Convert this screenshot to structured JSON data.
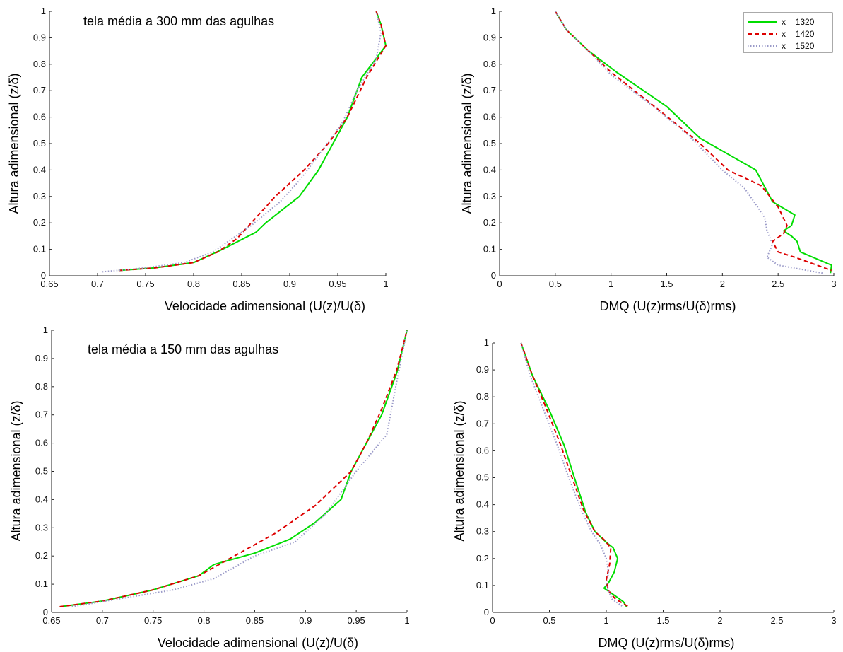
{
  "legend": {
    "entries": [
      {
        "label": "x = 1320",
        "color": "#00dd00",
        "dash": "solid"
      },
      {
        "label": "x = 1420",
        "color": "#dd0000",
        "dash": "dashed"
      },
      {
        "label": "x = 1520",
        "color": "#9a9ac8",
        "dash": "dotted"
      }
    ]
  },
  "chart_data": [
    {
      "type": "line",
      "id": "top-left",
      "annotation": "tela média a 300 mm das agulhas",
      "xlabel": "Velocidade adimensional (U(z)/U(δ)",
      "ylabel": "Altura adimensional (z/δ)",
      "xlim": [
        0.65,
        1
      ],
      "ylim": [
        0,
        1
      ],
      "xticks": [
        "0.65",
        "0.7",
        "0.75",
        "0.8",
        "0.85",
        "0.9",
        "0.95",
        "1"
      ],
      "yticks": [
        "0",
        "0.1",
        "0.2",
        "0.3",
        "0.4",
        "0.5",
        "0.6",
        "0.7",
        "0.8",
        "0.9",
        "1"
      ],
      "series": [
        {
          "name": "x = 1320",
          "color": "#00dd00",
          "dash": "solid",
          "x": [
            0.722,
            0.76,
            0.8,
            0.83,
            0.865,
            0.875,
            0.91,
            0.93,
            0.945,
            0.96,
            0.975,
            1.0,
            0.995,
            0.99
          ],
          "y": [
            0.02,
            0.03,
            0.05,
            0.1,
            0.165,
            0.2,
            0.3,
            0.4,
            0.5,
            0.6,
            0.75,
            0.87,
            0.95,
            1.0
          ]
        },
        {
          "name": "x = 1420",
          "color": "#dd0000",
          "dash": "dashed",
          "x": [
            0.722,
            0.76,
            0.8,
            0.825,
            0.845,
            0.86,
            0.885,
            0.915,
            0.94,
            0.96,
            0.98,
            1.0,
            0.995,
            0.99
          ],
          "y": [
            0.02,
            0.03,
            0.05,
            0.09,
            0.14,
            0.2,
            0.3,
            0.4,
            0.5,
            0.6,
            0.75,
            0.87,
            0.95,
            1.0
          ]
        },
        {
          "name": "x = 1520",
          "color": "#9a9ac8",
          "dash": "dotted",
          "x": [
            0.705,
            0.75,
            0.79,
            0.82,
            0.84,
            0.86,
            0.89,
            0.91,
            0.935,
            0.955,
            0.97,
            0.99,
            0.995,
            0.99
          ],
          "y": [
            0.015,
            0.03,
            0.05,
            0.09,
            0.14,
            0.19,
            0.28,
            0.36,
            0.48,
            0.58,
            0.7,
            0.82,
            0.92,
            1.0
          ]
        }
      ]
    },
    {
      "type": "line",
      "id": "top-right",
      "xlabel": "DMQ (U(z)rms/U(δ)rms)",
      "ylabel": "Altura adimensional (z/δ)",
      "xlim": [
        0,
        3
      ],
      "ylim": [
        0,
        1
      ],
      "xticks": [
        "0",
        "0.5",
        "1",
        "1.5",
        "2",
        "2.5",
        "3"
      ],
      "yticks": [
        "0",
        "0.1",
        "0.2",
        "0.3",
        "0.4",
        "0.5",
        "0.6",
        "0.7",
        "0.8",
        "0.9",
        "1"
      ],
      "legend_position": "top-right",
      "series": [
        {
          "name": "x = 1320",
          "color": "#00dd00",
          "dash": "solid",
          "x": [
            0.5,
            0.6,
            0.8,
            1.05,
            1.5,
            1.8,
            2.3,
            2.45,
            2.65,
            2.62,
            2.55,
            2.62,
            2.67,
            2.7,
            2.98,
            2.97
          ],
          "y": [
            1.0,
            0.93,
            0.85,
            0.77,
            0.64,
            0.52,
            0.4,
            0.28,
            0.23,
            0.19,
            0.17,
            0.15,
            0.13,
            0.09,
            0.04,
            0.01
          ]
        },
        {
          "name": "x = 1420",
          "color": "#dd0000",
          "dash": "dashed",
          "x": [
            0.5,
            0.6,
            0.8,
            1.0,
            1.45,
            1.8,
            2.05,
            2.35,
            2.5,
            2.58,
            2.55,
            2.45,
            2.5,
            2.65,
            2.85,
            2.98
          ],
          "y": [
            1.0,
            0.93,
            0.85,
            0.77,
            0.62,
            0.5,
            0.4,
            0.34,
            0.26,
            0.19,
            0.16,
            0.13,
            0.09,
            0.07,
            0.04,
            0.02
          ]
        },
        {
          "name": "x = 1520",
          "color": "#9a9ac8",
          "dash": "dotted",
          "x": [
            0.5,
            0.6,
            0.8,
            1.0,
            1.35,
            1.7,
            2.0,
            2.2,
            2.3,
            2.38,
            2.4,
            2.45,
            2.4,
            2.5,
            2.9
          ],
          "y": [
            1.0,
            0.93,
            0.85,
            0.76,
            0.65,
            0.53,
            0.4,
            0.33,
            0.27,
            0.22,
            0.17,
            0.12,
            0.07,
            0.04,
            0.01
          ]
        }
      ]
    },
    {
      "type": "line",
      "id": "bottom-left",
      "annotation": "tela média a 150 mm das agulhas",
      "xlabel": "Velocidade adimensional (U(z)/U(δ)",
      "ylabel": "Altura adimensional (z/δ)",
      "xlim": [
        0.65,
        1
      ],
      "ylim": [
        0,
        1
      ],
      "xticks": [
        "0.65",
        "0.7",
        "0.75",
        "0.8",
        "0.85",
        "0.9",
        "0.95",
        "1"
      ],
      "yticks": [
        "0",
        "0.1",
        "0.2",
        "0.3",
        "0.4",
        "0.5",
        "0.6",
        "0.7",
        "0.8",
        "0.9",
        "1"
      ],
      "series": [
        {
          "name": "x = 1320",
          "color": "#00dd00",
          "dash": "solid",
          "x": [
            0.658,
            0.7,
            0.75,
            0.795,
            0.81,
            0.85,
            0.885,
            0.91,
            0.935,
            0.945,
            0.96,
            0.975,
            0.99,
            1.0
          ],
          "y": [
            0.02,
            0.04,
            0.08,
            0.13,
            0.17,
            0.21,
            0.26,
            0.32,
            0.4,
            0.5,
            0.6,
            0.7,
            0.85,
            1.0
          ]
        },
        {
          "name": "x = 1420",
          "color": "#dd0000",
          "dash": "dashed",
          "x": [
            0.658,
            0.7,
            0.75,
            0.795,
            0.83,
            0.87,
            0.91,
            0.945,
            0.96,
            0.975,
            0.99,
            1.0
          ],
          "y": [
            0.02,
            0.04,
            0.08,
            0.13,
            0.2,
            0.28,
            0.38,
            0.5,
            0.6,
            0.72,
            0.86,
            1.0
          ]
        },
        {
          "name": "x = 1520",
          "color": "#9a9ac8",
          "dash": "dotted",
          "x": [
            0.67,
            0.72,
            0.77,
            0.81,
            0.85,
            0.89,
            0.92,
            0.95,
            0.98,
            0.99,
            1.0
          ],
          "y": [
            0.02,
            0.05,
            0.08,
            0.12,
            0.2,
            0.25,
            0.35,
            0.5,
            0.63,
            0.82,
            1.0
          ]
        }
      ]
    },
    {
      "type": "line",
      "id": "bottom-right",
      "xlabel": "DMQ (U(z)rms/U(δ)rms)",
      "ylabel": "Altura adimensional (z/δ)",
      "xlim": [
        0,
        3
      ],
      "ylim": [
        0,
        1
      ],
      "xticks": [
        "0",
        "0.5",
        "1",
        "1.5",
        "2",
        "2.5",
        "3"
      ],
      "yticks": [
        "0",
        "0.1",
        "0.2",
        "0.3",
        "0.4",
        "0.5",
        "0.6",
        "0.7",
        "0.8",
        "0.9",
        "1"
      ],
      "series": [
        {
          "name": "x = 1320",
          "color": "#00dd00",
          "dash": "solid",
          "x": [
            0.25,
            0.35,
            0.5,
            0.63,
            0.72,
            0.82,
            0.9,
            1.0,
            1.06,
            1.1,
            1.07,
            1.02,
            0.98,
            1.05,
            1.15,
            1.18
          ],
          "y": [
            1.0,
            0.88,
            0.75,
            0.62,
            0.5,
            0.37,
            0.3,
            0.26,
            0.24,
            0.2,
            0.15,
            0.11,
            0.09,
            0.07,
            0.04,
            0.02
          ]
        },
        {
          "name": "x = 1420",
          "color": "#dd0000",
          "dash": "dashed",
          "x": [
            0.25,
            0.35,
            0.48,
            0.6,
            0.7,
            0.8,
            0.9,
            0.98,
            1.04,
            1.03,
            1.0,
            1.02,
            1.08,
            1.2
          ],
          "y": [
            1.0,
            0.88,
            0.75,
            0.62,
            0.5,
            0.38,
            0.3,
            0.27,
            0.24,
            0.18,
            0.12,
            0.08,
            0.05,
            0.02
          ]
        },
        {
          "name": "x = 1520",
          "color": "#9a9ac8",
          "dash": "dotted",
          "x": [
            0.25,
            0.33,
            0.45,
            0.57,
            0.67,
            0.78,
            0.87,
            0.95,
            1.0,
            1.02,
            1.0,
            1.05,
            1.15
          ],
          "y": [
            1.0,
            0.88,
            0.75,
            0.62,
            0.5,
            0.38,
            0.3,
            0.25,
            0.2,
            0.15,
            0.1,
            0.05,
            0.02
          ]
        }
      ]
    }
  ]
}
